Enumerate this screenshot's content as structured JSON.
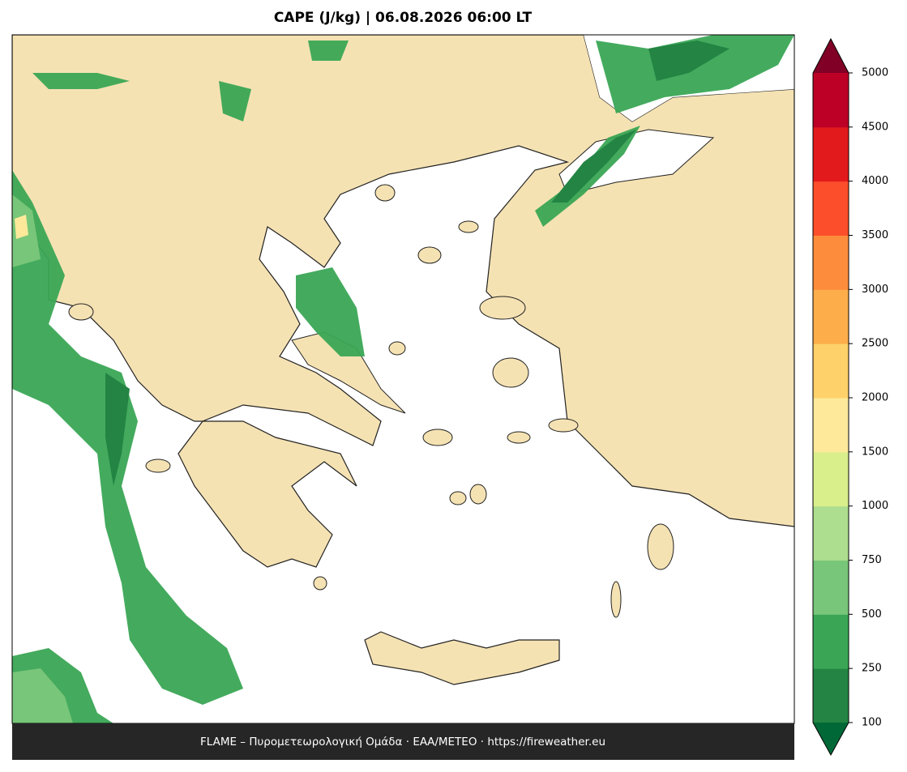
{
  "title": "CAPE (J/kg)  |  06.08.2026 06:00 LT",
  "footer": "FLAME – Πυρομετεωρολογική Ομάδα · ΕΑΑ/METEO · https://fireweather.eu",
  "colorbar": {
    "levels": [
      100,
      250,
      500,
      750,
      1000,
      1500,
      2000,
      2500,
      3000,
      3500,
      4000,
      4500,
      5000
    ],
    "colors": [
      "#238443",
      "#3aa655",
      "#78c679",
      "#addd8e",
      "#d9ef8b",
      "#fee99a",
      "#fed16a",
      "#fdae4a",
      "#fd8d3c",
      "#fc4e2a",
      "#e31a1c",
      "#bd0026"
    ],
    "under_color": "#006837",
    "over_color": "#800026"
  }
}
